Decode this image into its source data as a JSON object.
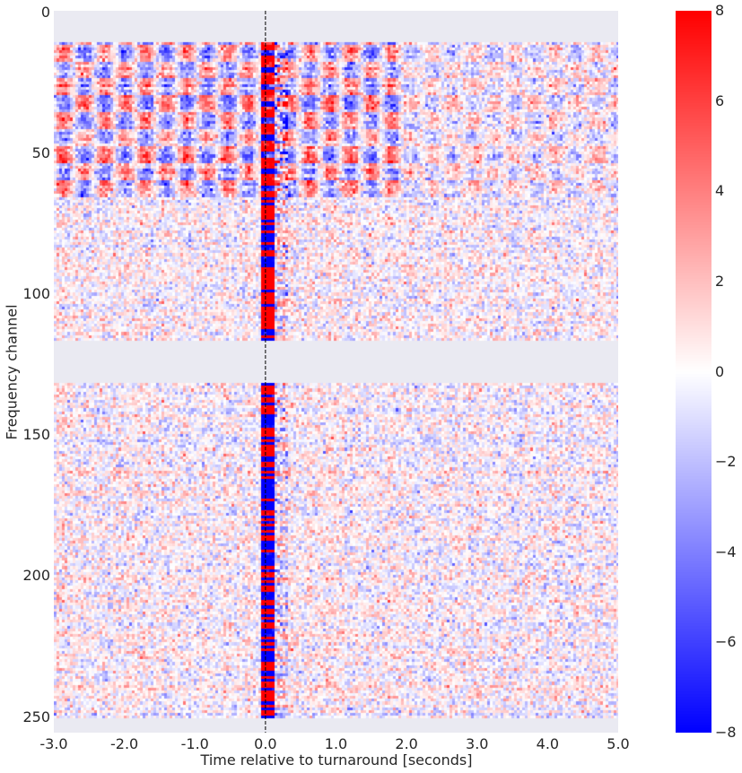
{
  "chart_data": {
    "type": "heatmap",
    "title": "",
    "xlabel": "Time relative to turnaround [seconds]",
    "ylabel": "Frequency channel",
    "xlim": [
      -3.0,
      5.0
    ],
    "ylim": [
      255.5,
      -0.5
    ],
    "x_ticks": [
      -3.0,
      -2.0,
      -1.0,
      0.0,
      1.0,
      2.0,
      3.0,
      4.0,
      5.0
    ],
    "x_tick_labels": [
      "-3.0",
      "-2.0",
      "-1.0",
      "0.0",
      "1.0",
      "2.0",
      "3.0",
      "4.0",
      "5.0"
    ],
    "y_ticks": [
      0,
      50,
      100,
      150,
      200,
      250
    ],
    "y_tick_labels": [
      "0",
      "50",
      "100",
      "150",
      "200",
      "250"
    ],
    "n_time_bins": 210,
    "n_channels": 256,
    "masked_channel_ranges": [
      [
        0,
        10
      ],
      [
        117,
        131
      ],
      [
        251,
        255
      ]
    ],
    "colormap": "bwr",
    "color_range": [
      -8,
      8
    ],
    "colorbar": {
      "ticks": [
        -8,
        -6,
        -4,
        -2,
        0,
        2,
        4,
        6,
        8
      ],
      "tick_labels": [
        "−8",
        "−6",
        "−4",
        "−2",
        "0",
        "2",
        "4",
        "6",
        "8"
      ]
    },
    "annotations": [
      {
        "type": "vertical-dashed-line",
        "x": 0.0,
        "color": "#000000"
      }
    ],
    "features": {
      "strong_band_channels": [
        11,
        65
      ],
      "turnaround_signal_time_range": [
        -0.05,
        0.12
      ],
      "periodic_stripe_period_seconds": 0.58
    },
    "grid": false,
    "background_color": "#EAEAF2"
  }
}
